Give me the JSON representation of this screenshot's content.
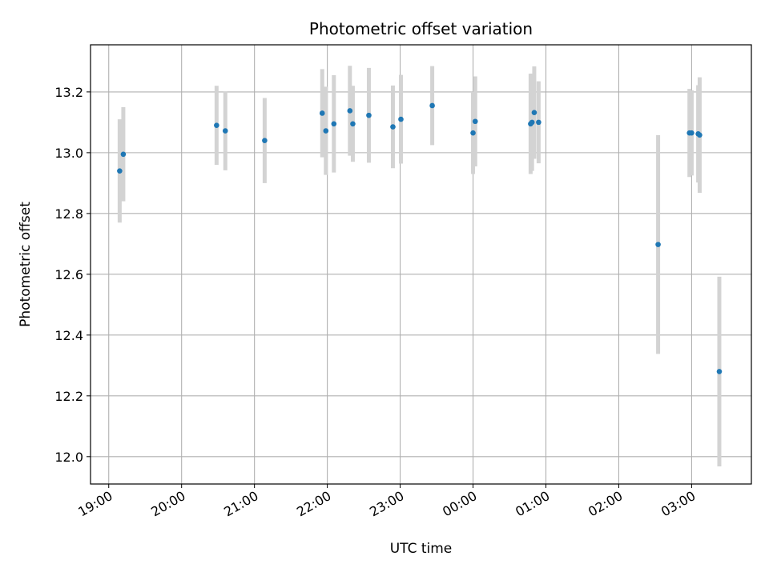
{
  "chart_data": {
    "type": "scatter",
    "title": "Photometric offset variation",
    "xlabel": "UTC time",
    "ylabel": "Photometric offset",
    "xlim_hours": [
      18.75,
      27.82
    ],
    "ylim": [
      11.91,
      13.355
    ],
    "grid": true,
    "x_ticks": [
      {
        "h": 19,
        "label": "19:00"
      },
      {
        "h": 20,
        "label": "20:00"
      },
      {
        "h": 21,
        "label": "21:00"
      },
      {
        "h": 22,
        "label": "22:00"
      },
      {
        "h": 23,
        "label": "23:00"
      },
      {
        "h": 24,
        "label": "00:00"
      },
      {
        "h": 25,
        "label": "01:00"
      },
      {
        "h": 26,
        "label": "02:00"
      },
      {
        "h": 27,
        "label": "03:00"
      }
    ],
    "y_ticks": [
      {
        "v": 12.0,
        "label": "12.0"
      },
      {
        "v": 12.2,
        "label": "12.2"
      },
      {
        "v": 12.4,
        "label": "12.4"
      },
      {
        "v": 12.6,
        "label": "12.6"
      },
      {
        "v": 12.8,
        "label": "12.8"
      },
      {
        "v": 13.0,
        "label": "13.0"
      },
      {
        "v": 13.2,
        "label": "13.2"
      }
    ],
    "series": [
      {
        "name": "offset",
        "point_color": "#1f77b4",
        "error_color": "#d3d3d3",
        "points": [
          {
            "t": 19.15,
            "y": 12.94,
            "err": 0.17
          },
          {
            "t": 19.2,
            "y": 12.995,
            "err": 0.155
          },
          {
            "t": 20.48,
            "y": 13.09,
            "err": 0.13
          },
          {
            "t": 20.6,
            "y": 13.072,
            "err": 0.13
          },
          {
            "t": 21.14,
            "y": 13.04,
            "err": 0.14
          },
          {
            "t": 21.93,
            "y": 13.13,
            "err": 0.145
          },
          {
            "t": 21.98,
            "y": 13.072,
            "err": 0.145
          },
          {
            "t": 22.09,
            "y": 13.095,
            "err": 0.16
          },
          {
            "t": 22.31,
            "y": 13.138,
            "err": 0.148
          },
          {
            "t": 22.35,
            "y": 13.095,
            "err": 0.125
          },
          {
            "t": 22.57,
            "y": 13.123,
            "err": 0.156
          },
          {
            "t": 22.9,
            "y": 13.085,
            "err": 0.136
          },
          {
            "t": 23.01,
            "y": 13.11,
            "err": 0.146
          },
          {
            "t": 23.44,
            "y": 13.155,
            "err": 0.13
          },
          {
            "t": 24.0,
            "y": 13.065,
            "err": 0.135
          },
          {
            "t": 24.03,
            "y": 13.103,
            "err": 0.148
          },
          {
            "t": 24.79,
            "y": 13.095,
            "err": 0.165
          },
          {
            "t": 24.81,
            "y": 13.1,
            "err": 0.16
          },
          {
            "t": 24.84,
            "y": 13.132,
            "err": 0.152
          },
          {
            "t": 24.9,
            "y": 13.1,
            "err": 0.135
          },
          {
            "t": 26.54,
            "y": 12.698,
            "err": 0.36
          },
          {
            "t": 26.97,
            "y": 13.065,
            "err": 0.145
          },
          {
            "t": 27.0,
            "y": 13.065,
            "err": 0.14
          },
          {
            "t": 27.09,
            "y": 13.062,
            "err": 0.16
          },
          {
            "t": 27.11,
            "y": 13.058,
            "err": 0.19
          },
          {
            "t": 27.38,
            "y": 12.28,
            "err": 0.312
          }
        ]
      }
    ]
  }
}
